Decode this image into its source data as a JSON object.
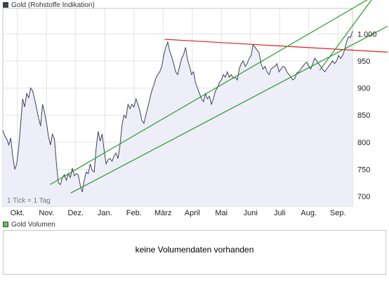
{
  "legend": {
    "price_label": "Gold (Rohstoffe Indikation)",
    "price_color": "#3c4258",
    "volume_label": "Gold Volumen",
    "volume_color": "#5cc25c"
  },
  "tick_note": "1 Tick = 1 Tag",
  "volume_message": "keine Volumendaten vorhanden",
  "chart_data": {
    "type": "line",
    "xlabels": [
      "Okt.",
      "Nov.",
      "Dez.",
      "Jan.",
      "Feb.",
      "März",
      "April",
      "Mai",
      "Juni",
      "Juli",
      "Aug.",
      "Sep."
    ],
    "ytick_labels": [
      "700",
      "750",
      "800",
      "850",
      "900",
      "950",
      "1.000"
    ],
    "yticks": [
      700,
      750,
      800,
      850,
      900,
      950,
      1000
    ],
    "ylim": [
      682,
      1047
    ],
    "grid": true,
    "series": [
      {
        "name": "Gold (Rohstoffe Indikation)",
        "color": "#3c4258",
        "fill": "#eeeef8",
        "y": [
          822,
          812,
          806,
          795,
          808,
          775,
          750,
          760,
          790,
          835,
          880,
          865,
          890,
          882,
          900,
          895,
          880,
          862,
          845,
          830,
          870,
          855,
          835,
          810,
          795,
          815,
          805,
          760,
          725,
          722,
          735,
          740,
          730,
          742,
          735,
          752,
          738,
          742,
          740,
          720,
          708,
          730,
          745,
          742,
          760,
          748,
          745,
          790,
          820,
          802,
          815,
          785,
          760,
          768,
          770,
          765,
          775,
          780,
          770,
          795,
          832,
          850,
          845,
          870,
          862,
          870,
          865,
          880,
          870,
          858,
          840,
          835,
          850,
          865,
          880,
          895,
          905,
          918,
          925,
          930,
          940,
          960,
          975,
          985,
          968,
          958,
          945,
          930,
          925,
          940,
          955,
          962,
          975,
          952,
          940,
          925,
          930,
          910,
          900,
          890,
          880,
          875,
          890,
          880,
          885,
          870,
          880,
          895,
          900,
          910,
          915,
          925,
          920,
          930,
          920,
          925,
          918,
          920,
          915,
          935,
          945,
          950,
          940,
          945,
          955,
          960,
          980,
          975,
          970,
          965,
          945,
          935,
          940,
          930,
          925,
          935,
          938,
          940,
          945,
          930,
          935,
          940,
          938,
          930,
          925,
          920,
          915,
          918,
          928,
          930,
          935,
          940,
          945,
          948,
          940,
          935,
          945,
          955,
          950,
          945,
          940,
          935,
          930,
          935,
          940,
          945,
          950,
          945,
          950,
          960,
          955,
          960,
          970,
          985,
          995,
          993,
          1005
        ]
      }
    ],
    "trendlines": [
      {
        "name": "resistance",
        "color": "#dd2020",
        "from": [
          0.4627,
          990
        ],
        "to": [
          1.0,
          970
        ]
      },
      {
        "name": "upper-channel",
        "color": "#2a9a2a",
        "from": [
          0.1355,
          722
        ],
        "to": [
          1.0,
          1047
        ]
      },
      {
        "name": "lower-channel",
        "color": "#2a9a2a",
        "from": [
          0.1939,
          706
        ],
        "to": [
          1.0,
          980
        ]
      },
      {
        "name": "inner-channel",
        "color": "#2a9a2a",
        "from": [
          0.9065,
          933
        ],
        "to": [
          1.0,
          1015
        ]
      }
    ]
  }
}
